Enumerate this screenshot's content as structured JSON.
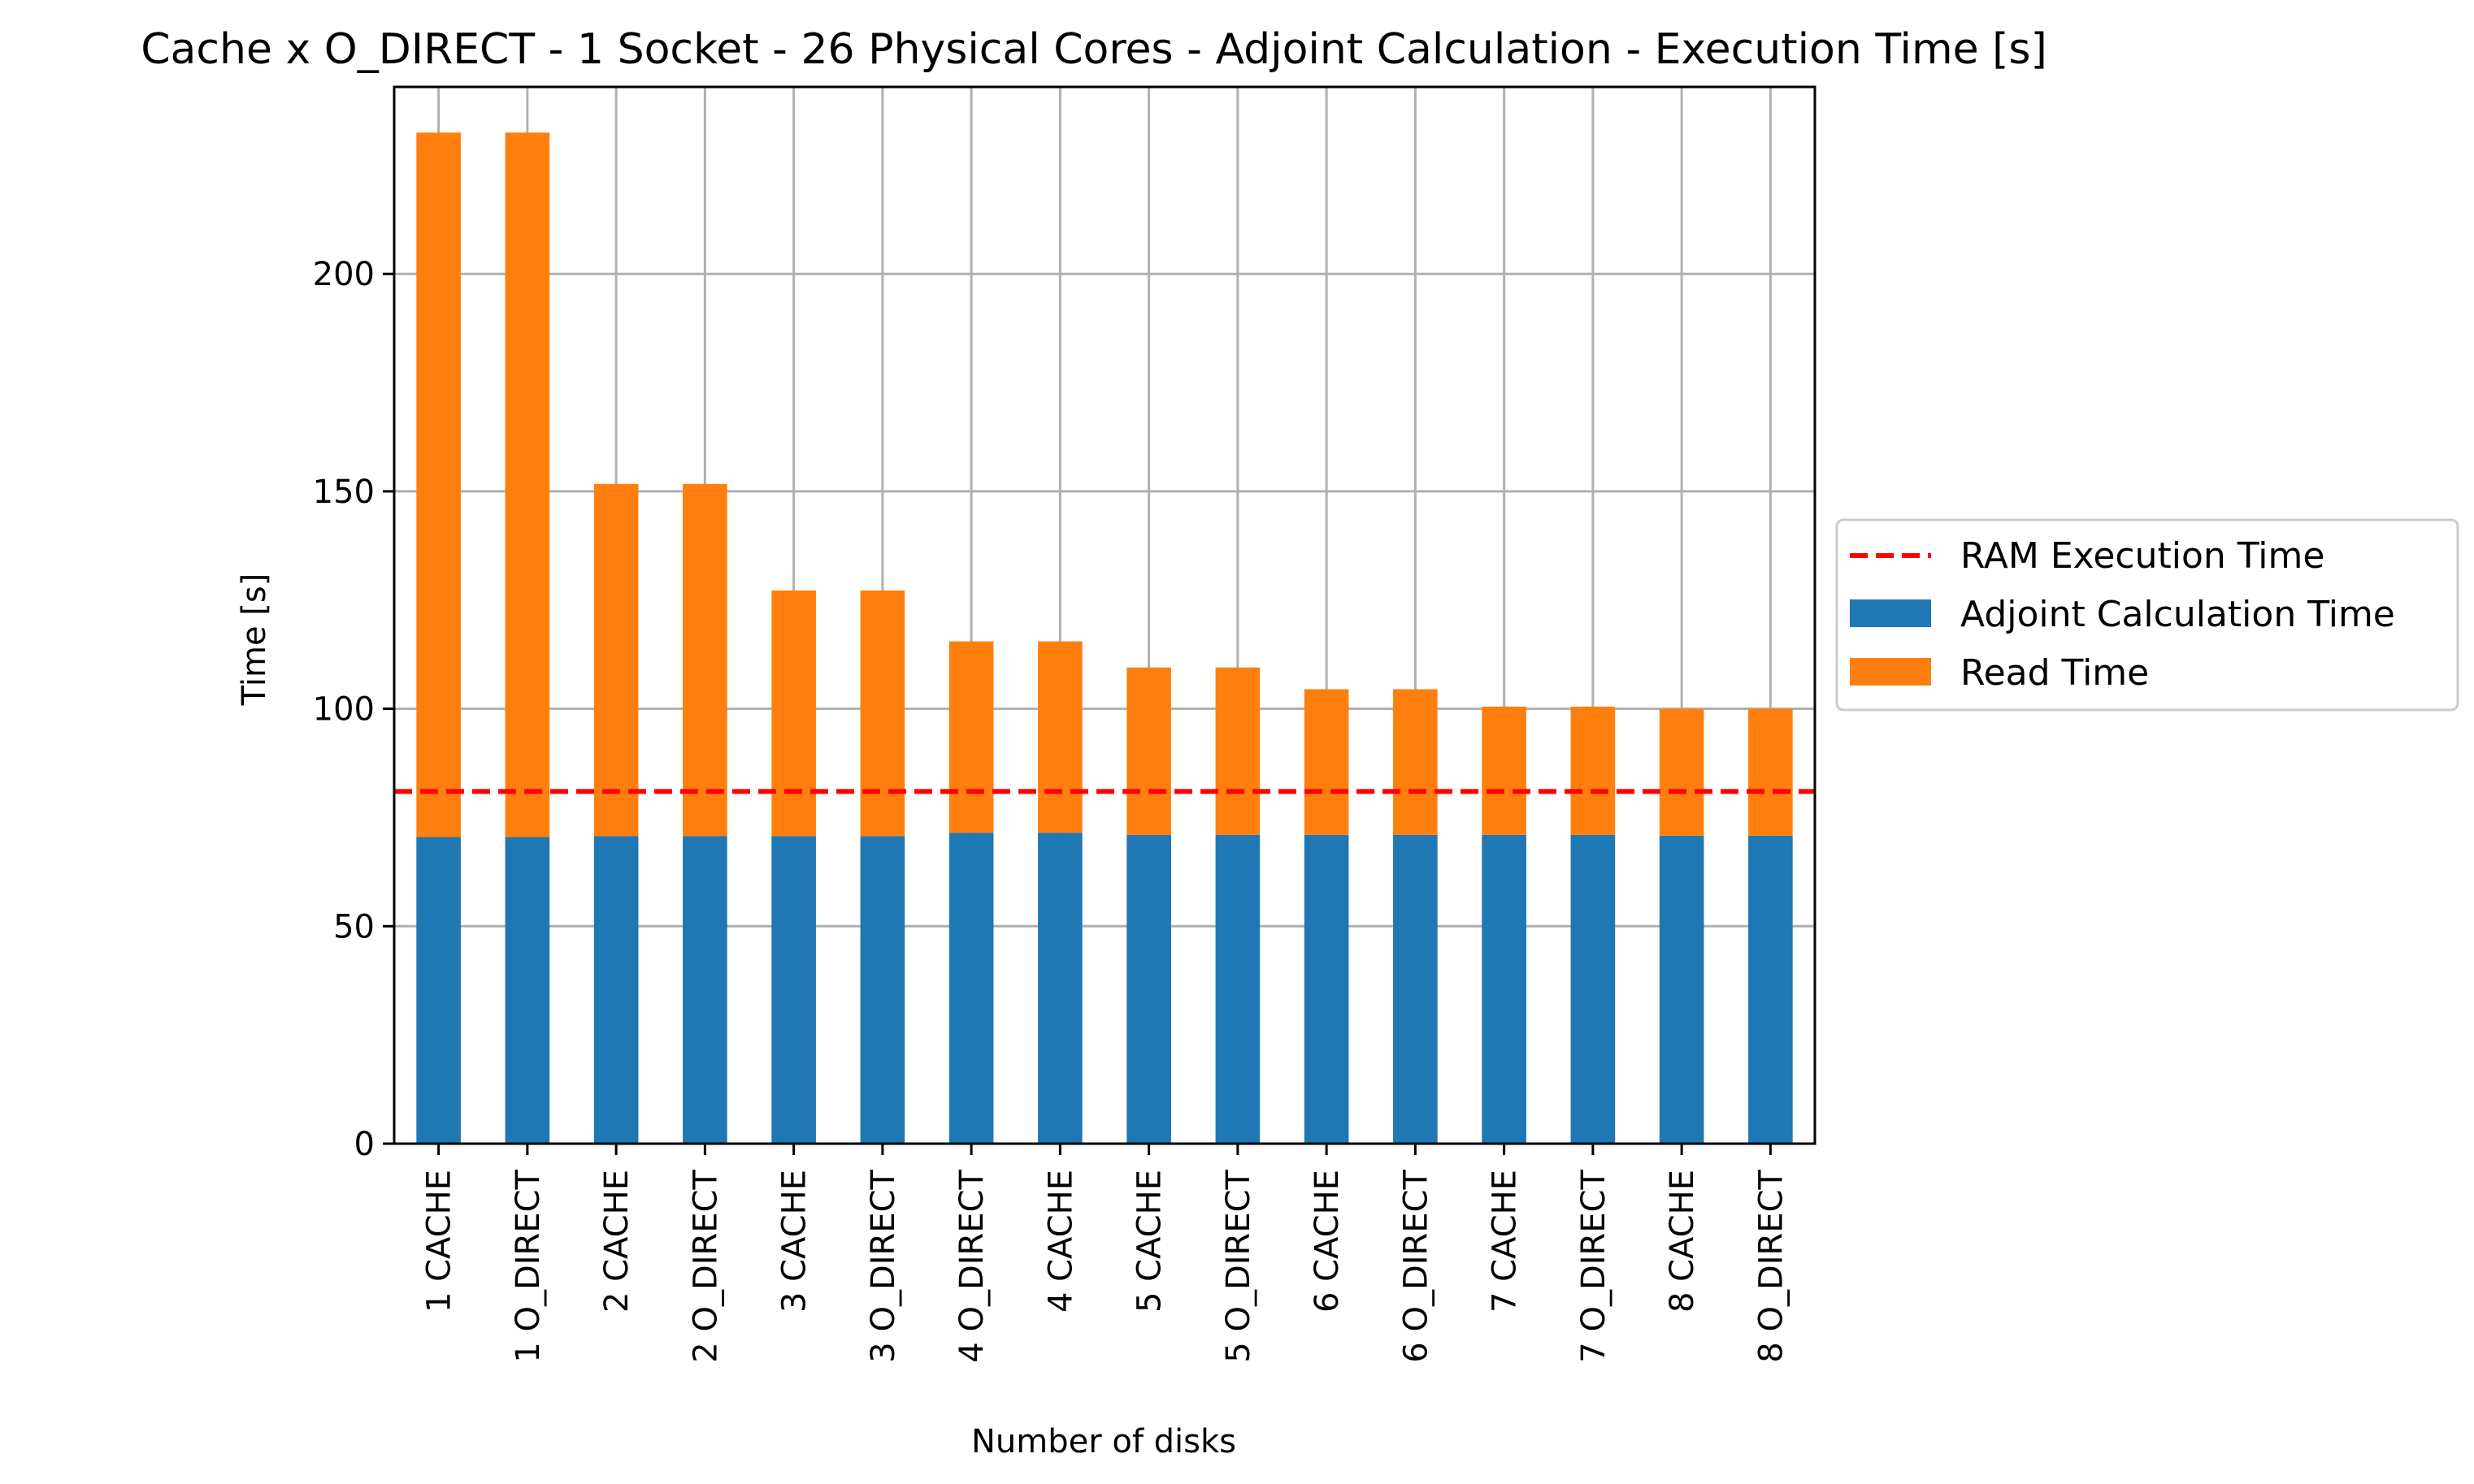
{
  "chart_data": {
    "type": "bar",
    "stacked": true,
    "title": "Cache x O_DIRECT - 1 Socket - 26 Physical Cores - Adjoint Calculation - Execution Time [s]",
    "xlabel": "Number of disks",
    "ylabel": "Time [s]",
    "ylim": [
      0,
      243
    ],
    "yticks": [
      0,
      50,
      100,
      150,
      200
    ],
    "grid": true,
    "legend_position": "center-right-outside",
    "categories": [
      "1 CACHE",
      "1 O_DIRECT",
      "2 CACHE",
      "2 O_DIRECT",
      "3 CACHE",
      "3 O_DIRECT",
      "4 O_DIRECT",
      "4 CACHE",
      "5 CACHE",
      "5 O_DIRECT",
      "6 CACHE",
      "6 O_DIRECT",
      "7 CACHE",
      "7 O_DIRECT",
      "8 CACHE",
      "8 O_DIRECT"
    ],
    "series": [
      {
        "name": "Adjoint Calculation Time",
        "color": "#1f77b4",
        "values": [
          70.5,
          70.5,
          70.7,
          70.7,
          70.7,
          70.7,
          71.5,
          71.5,
          71.0,
          71.0,
          71.0,
          71.0,
          71.0,
          71.0,
          70.8,
          70.8
        ]
      },
      {
        "name": "Read Time",
        "color": "#ff7f0e",
        "values": [
          162.0,
          162.0,
          81.0,
          81.0,
          56.5,
          56.5,
          44.0,
          44.0,
          38.5,
          38.5,
          33.5,
          33.5,
          29.5,
          29.5,
          29.2,
          29.2
        ]
      }
    ],
    "reference_line": {
      "name": "RAM Execution Time",
      "value": 81,
      "color": "#ff0000",
      "style": "dashed"
    }
  }
}
